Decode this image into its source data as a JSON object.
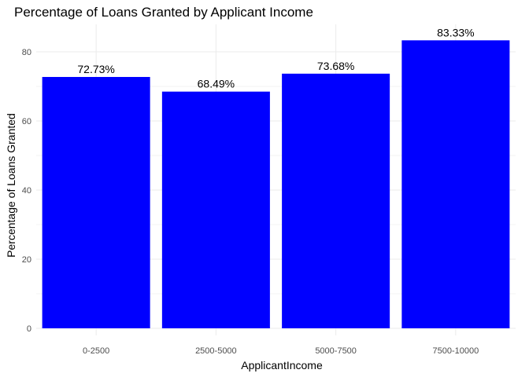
{
  "chart_data": {
    "type": "bar",
    "title": "Percentage of Loans Granted by Applicant Income",
    "xlabel": "ApplicantIncome",
    "ylabel": "Percentage of Loans Granted",
    "categories": [
      "0-2500",
      "2500-5000",
      "5000-7500",
      "7500-10000"
    ],
    "values": [
      72.73,
      68.49,
      73.68,
      83.33
    ],
    "data_labels": [
      "72.73%",
      "68.49%",
      "73.68%",
      "83.33%"
    ],
    "ylim": [
      0,
      87.5
    ],
    "yticks": [
      0,
      20,
      40,
      60,
      80
    ],
    "grid": true,
    "bar_color": "#0000FF",
    "grid_color": "#ebebeb"
  }
}
